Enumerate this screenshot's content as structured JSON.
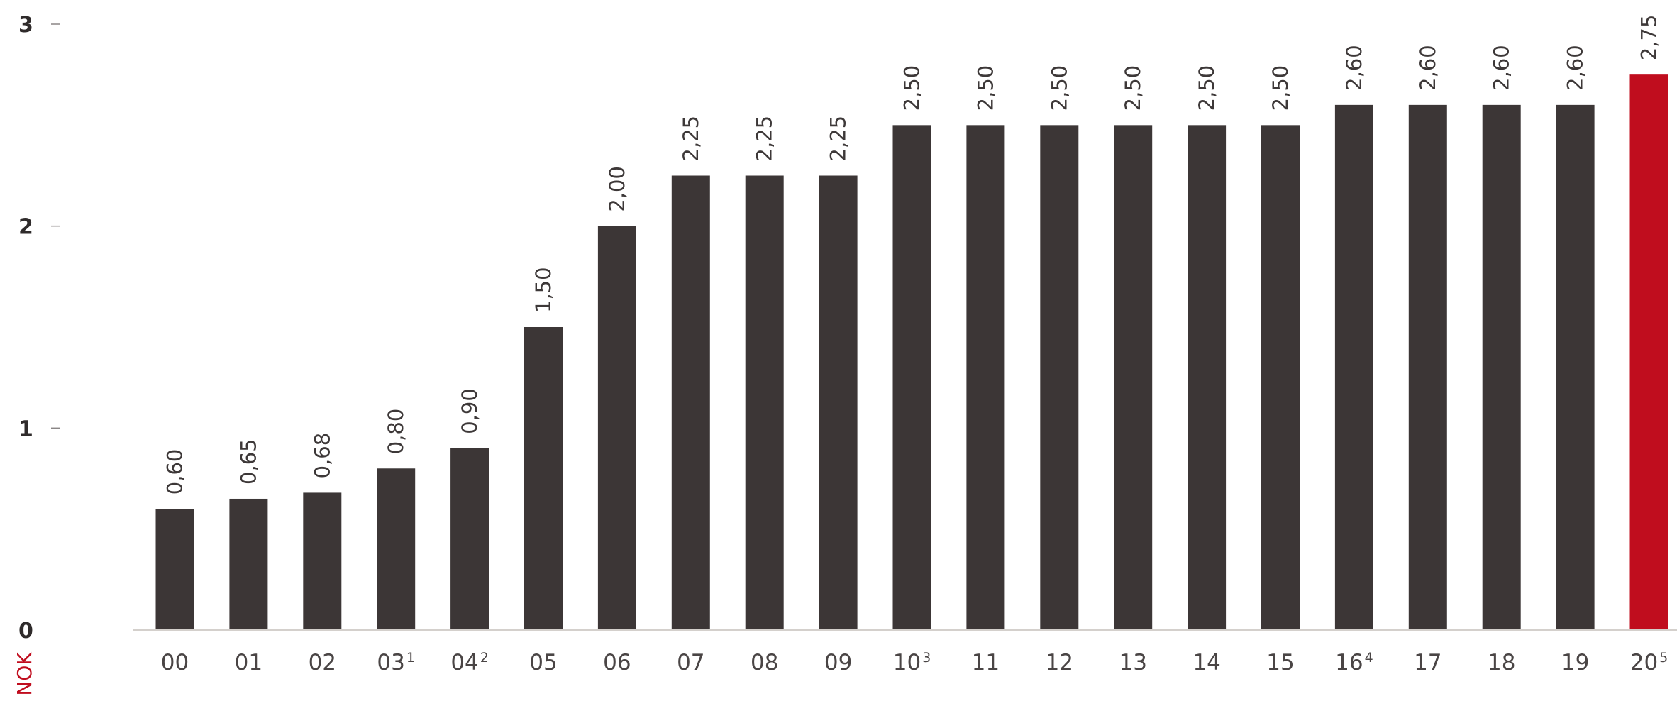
{
  "chart_data": {
    "type": "bar",
    "title": "",
    "xlabel": "",
    "ylabel": "NOK",
    "ylim": [
      0,
      3
    ],
    "yticks": [
      "0",
      "1",
      "2",
      "3"
    ],
    "grid": false,
    "categories": [
      {
        "label": "00",
        "sup": ""
      },
      {
        "label": "01",
        "sup": ""
      },
      {
        "label": "02",
        "sup": ""
      },
      {
        "label": "03",
        "sup": "1"
      },
      {
        "label": "04",
        "sup": "2"
      },
      {
        "label": "05",
        "sup": ""
      },
      {
        "label": "06",
        "sup": ""
      },
      {
        "label": "07",
        "sup": ""
      },
      {
        "label": "08",
        "sup": ""
      },
      {
        "label": "09",
        "sup": ""
      },
      {
        "label": "10",
        "sup": "3"
      },
      {
        "label": "11",
        "sup": ""
      },
      {
        "label": "12",
        "sup": ""
      },
      {
        "label": "13",
        "sup": ""
      },
      {
        "label": "14",
        "sup": ""
      },
      {
        "label": "15",
        "sup": ""
      },
      {
        "label": "16",
        "sup": "4"
      },
      {
        "label": "17",
        "sup": ""
      },
      {
        "label": "18",
        "sup": ""
      },
      {
        "label": "19",
        "sup": ""
      },
      {
        "label": "20",
        "sup": "5"
      }
    ],
    "values": [
      0.6,
      0.65,
      0.68,
      0.8,
      0.9,
      1.5,
      2.0,
      2.25,
      2.25,
      2.25,
      2.5,
      2.5,
      2.5,
      2.5,
      2.5,
      2.5,
      2.6,
      2.6,
      2.6,
      2.6,
      2.75
    ],
    "value_labels": [
      "0,60",
      "0,65",
      "0,68",
      "0,80",
      "0,90",
      "1,50",
      "2,00",
      "2,25",
      "2,25",
      "2,25",
      "2,50",
      "2,50",
      "2,50",
      "2,50",
      "2,50",
      "2,50",
      "2,60",
      "2,60",
      "2,60",
      "2,60",
      "2,75"
    ],
    "colors": {
      "bar": "#3c3636",
      "highlight": "#c00d1e",
      "ylabel": "#c00d1e"
    },
    "highlight_index": 20
  }
}
